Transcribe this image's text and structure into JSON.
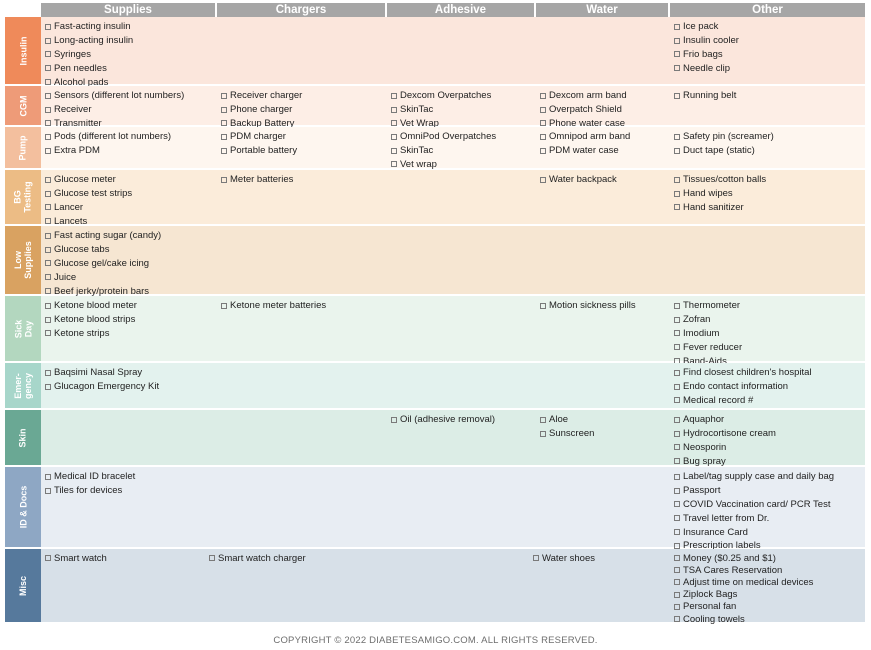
{
  "columns": [
    "Supplies",
    "Chargers",
    "Adhesive",
    "Water",
    "Other"
  ],
  "rows": [
    {
      "label": "Insulin",
      "label_color": "#ef8a5a",
      "body_color": "#fbe6dc",
      "cells": [
        [
          "Fast-acting insulin",
          "Long-acting insulin",
          "Syringes",
          "Pen needles",
          "Alcohol pads"
        ],
        [],
        [],
        [],
        [
          "Ice pack",
          "Insulin cooler",
          "Frio bags",
          "Needle clip"
        ]
      ]
    },
    {
      "label": "CGM",
      "label_color": "#ee9b78",
      "body_color": "#fdeee6",
      "cells": [
        [
          "Sensors (different lot numbers)",
          "Receiver",
          "Transmitter"
        ],
        [
          "Receiver charger",
          "Phone charger",
          "Backup Battery"
        ],
        [
          "Dexcom Overpatches",
          "SkinTac",
          "Vet Wrap"
        ],
        [
          "Dexcom arm band",
          "Overpatch Shield",
          "Phone water case"
        ],
        [
          "Running belt"
        ]
      ]
    },
    {
      "label": "Pump",
      "label_color": "#f3bf9e",
      "body_color": "#fef6ef",
      "cells": [
        [
          "Pods (different lot numbers)",
          "Extra PDM"
        ],
        [
          "PDM charger",
          "Portable battery"
        ],
        [
          "OmniPod Overpatches",
          "SkinTac",
          "Vet wrap"
        ],
        [
          "Omnipod arm band",
          "PDM water case"
        ],
        [
          "Safety pin (screamer)",
          "Duct tape (static)"
        ]
      ]
    },
    {
      "label": "BG\nTesting",
      "label_color": "#ecbc85",
      "body_color": "#fbecda",
      "cells": [
        [
          "Glucose meter",
          "Glucose test strips",
          "Lancer",
          "Lancets"
        ],
        [
          "Meter batteries"
        ],
        [],
        [
          "Water backpack"
        ],
        [
          "Tissues/cotton balls",
          "Hand wipes",
          "Hand sanitizer"
        ]
      ]
    },
    {
      "label": "Low\nSupplies",
      "label_color": "#d9a261",
      "body_color": "#f6e6d2",
      "cells": [
        [
          "Fast acting sugar (candy)",
          "Glucose tabs",
          "Glucose gel/cake icing",
          "Juice",
          "Beef jerky/protein bars"
        ],
        [],
        [],
        [],
        []
      ]
    },
    {
      "label": "Sick\nDay",
      "label_color": "#b3d7bf",
      "body_color": "#eaf4ed",
      "cells": [
        [
          "Ketone blood meter",
          "Ketone blood strips",
          "Ketone strips"
        ],
        [
          "Ketone meter batteries"
        ],
        [],
        [
          "Motion sickness pills"
        ],
        [
          "Thermometer",
          "Zofran",
          "Imodium",
          "Fever reducer",
          "Band-Aids"
        ]
      ]
    },
    {
      "label": "Emer-\ngency",
      "label_color": "#a7d6ca",
      "body_color": "#e3f2ee",
      "cells": [
        [
          "Baqsimi Nasal Spray",
          "Glucagon Emergency Kit"
        ],
        [],
        [],
        [],
        [
          "Find closest children's hospital",
          "Endo contact information",
          "Medical record #"
        ]
      ]
    },
    {
      "label": "Skin",
      "label_color": "#6aa894",
      "body_color": "#dcede6",
      "cells": [
        [],
        [],
        [
          "Oil (adhesive removal)"
        ],
        [
          "Aloe",
          "Sunscreen"
        ],
        [
          "Aquaphor",
          "Hydrocortisone cream",
          "Neosporin",
          "Bug spray"
        ]
      ]
    },
    {
      "label": "ID & Docs",
      "label_color": "#8ea7c4",
      "body_color": "#e8edf3",
      "cells": [
        [
          "Medical ID bracelet",
          "Tiles for devices"
        ],
        [],
        [],
        [],
        [
          "Label/tag supply case and daily bag",
          "Passport",
          "COVID Vaccination card/ PCR Test",
          "Travel letter from Dr.",
          "Insurance Card",
          "Prescription labels"
        ]
      ]
    },
    {
      "label": "Misc",
      "label_color": "#56799c",
      "body_color": "#d7e0e8",
      "cells": [
        [
          "Smart watch"
        ],
        [
          "Smart watch charger"
        ],
        [],
        [
          "Water shoes"
        ],
        [
          "Money ($0.25 and $1)",
          "TSA Cares Reservation",
          "Adjust time on medical devices",
          "Ziplock Bags",
          "Personal fan",
          "Cooling towels"
        ]
      ]
    }
  ],
  "footer": "COPYRIGHT © 2022 DIABETESAMIGO.COM. ALL RIGHTS RESERVED."
}
